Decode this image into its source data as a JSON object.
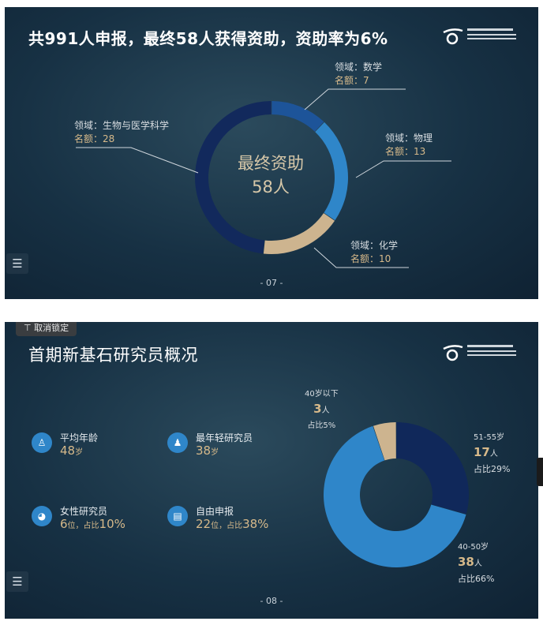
{
  "slide1": {
    "title": "共991人申报，最终58人获得资助，资助率为6%",
    "center_line1": "最终资助",
    "center_line2": "58人",
    "labels": {
      "bio": {
        "field": "领域：生物与医学科学",
        "quota": "名额：28"
      },
      "math": {
        "field": "领域：数学",
        "quota": "名额：7"
      },
      "physics": {
        "field": "领域：物理",
        "quota": "名额：13"
      },
      "chem": {
        "field": "领域：化学",
        "quota": "名额：10"
      }
    },
    "page": "- 07 -",
    "menu_icon": "list-icon"
  },
  "slide2": {
    "unlock_label": "取消锁定",
    "unlock_icon": "pin-icon",
    "title": "首期新基石研究员概况",
    "stats": {
      "avg_age": {
        "name": "平均年龄",
        "value": "48",
        "unit": "岁"
      },
      "youngest": {
        "name": "最年轻研究员",
        "value": "38",
        "unit": "岁"
      },
      "female": {
        "name": "女性研究员",
        "value": "6",
        "unit": "位，占比",
        "pct": "10%"
      },
      "self_apply": {
        "name": "自由申报",
        "value": "22",
        "unit": "位，占比",
        "pct": "38%"
      }
    },
    "age_labels": {
      "under40": {
        "group": "40岁以下",
        "count": "3",
        "unit": "人",
        "share": "占比5%"
      },
      "51_55": {
        "group": "51-55岁",
        "count": "17",
        "unit": "人",
        "share": "占比29%"
      },
      "40_50": {
        "group": "40-50岁",
        "count": "38",
        "unit": "人",
        "share": "占比66%"
      }
    },
    "page": "- 08 -",
    "menu_icon": "list-icon"
  },
  "colors": {
    "navy": "#122a5c",
    "mid_blue": "#2f7fc4",
    "deep_blue": "#1c4f95",
    "tan": "#cdb48f",
    "gold_text": "#d6b98a"
  },
  "chart_data": [
    {
      "type": "pie",
      "title": "共991人申报，最终58人获得资助，资助率为6%",
      "categories": [
        "数学",
        "物理",
        "化学",
        "生物与医学科学"
      ],
      "values": [
        7,
        13,
        10,
        28
      ],
      "colors": [
        "#1d5499",
        "#2f86c9",
        "#cdb48f",
        "#12295c"
      ]
    },
    {
      "type": "pie",
      "title": "首期新基石研究员概况",
      "categories": [
        "51-55岁",
        "40-50岁",
        "40岁以下"
      ],
      "values": [
        17,
        38,
        3
      ],
      "colors": [
        "#10285a",
        "#2f86c9",
        "#cdb48f"
      ]
    }
  ]
}
